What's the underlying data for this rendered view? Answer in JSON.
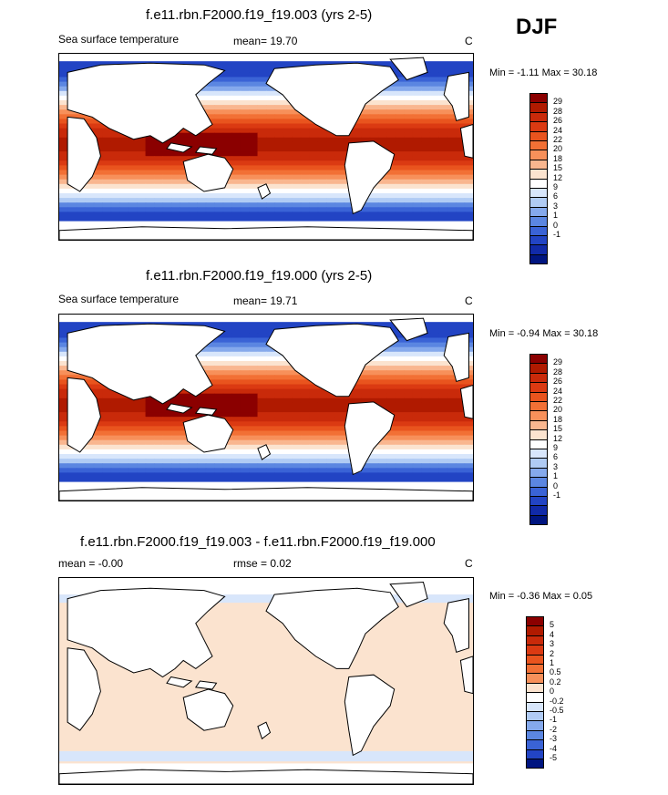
{
  "season": "DJF",
  "panels": [
    {
      "title": "f.e11.rbn.F2000.f19_f19.003 (yrs 2-5)",
      "variable": "Sea surface temperature",
      "mean": "mean=  19.70",
      "units": "C",
      "minmax": "Min =  -1.11 Max =  30.18",
      "levels": [
        "29",
        "28",
        "26",
        "24",
        "22",
        "20",
        "18",
        "15",
        "12",
        "9",
        "6",
        "3",
        "1",
        "0",
        "-1"
      ],
      "colors": [
        "#8b0000",
        "#b01a00",
        "#c92a0a",
        "#db3a12",
        "#e9541e",
        "#f27035",
        "#f7905a",
        "#f9b68f",
        "#fbe3cf",
        "#ffffff",
        "#d8e6fb",
        "#b0cbf4",
        "#85a9ec",
        "#5b86e1",
        "#3a63d6",
        "#2244c4",
        "#112aa8",
        "#001580"
      ],
      "fields": "sst"
    },
    {
      "title": "f.e11.rbn.F2000.f19_f19.000 (yrs 2-5)",
      "variable": "Sea surface temperature",
      "mean": "mean=  19.71",
      "units": "C",
      "minmax": "Min =  -0.94 Max =  30.18",
      "levels": [
        "29",
        "28",
        "26",
        "24",
        "22",
        "20",
        "18",
        "15",
        "12",
        "9",
        "6",
        "3",
        "1",
        "0",
        "-1"
      ],
      "colors": [
        "#8b0000",
        "#b01a00",
        "#c92a0a",
        "#db3a12",
        "#e9541e",
        "#f27035",
        "#f7905a",
        "#f9b68f",
        "#fbe3cf",
        "#ffffff",
        "#d8e6fb",
        "#b0cbf4",
        "#85a9ec",
        "#5b86e1",
        "#3a63d6",
        "#2244c4",
        "#112aa8",
        "#001580"
      ],
      "fields": "sst"
    },
    {
      "title": "f.e11.rbn.F2000.f19_f19.003 - f.e11.rbn.F2000.f19_f19.000",
      "mean": "mean =  -0.00",
      "rmse": "rmse =   0.02",
      "units": "C",
      "minmax": "Min =  -0.36 Max =   0.05",
      "levels": [
        "5",
        "4",
        "3",
        "2",
        "1",
        "0.5",
        "0.2",
        "0",
        "-0.2",
        "-0.5",
        "-1",
        "-2",
        "-3",
        "-4",
        "-5"
      ],
      "colors": [
        "#8b0000",
        "#b01a00",
        "#c92a0a",
        "#db3a12",
        "#e9541e",
        "#f27035",
        "#f7905a",
        "#fbe3cf",
        "#ffffff",
        "#d8e6fb",
        "#b0cbf4",
        "#85a9ec",
        "#5b86e1",
        "#3a63d6",
        "#2244c4",
        "#001580"
      ],
      "fields": "diff"
    }
  ]
}
